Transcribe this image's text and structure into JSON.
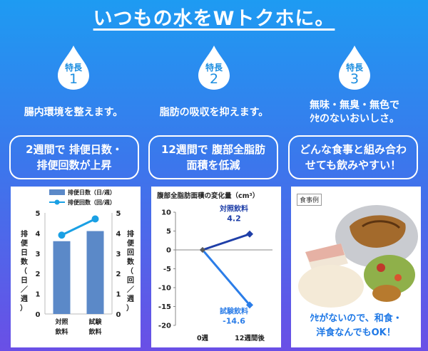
{
  "header": {
    "title": "いつもの水をWトクホに。"
  },
  "features": [
    {
      "tag": "特長",
      "num": "1",
      "text": "腸内環境を整えます。",
      "box": [
        "2週間で 排便日数・",
        "排便回数が上昇"
      ]
    },
    {
      "tag": "特長",
      "num": "2",
      "text": "脂肪の吸収を抑えます。",
      "box": [
        "12週間で 腹部全脂肪",
        "面積を低減"
      ]
    },
    {
      "tag": "特長",
      "num": "3",
      "text": [
        "無味・無臭・無色で",
        "ｸｾのないおいしさ。"
      ],
      "box": [
        "どんな食事と組み合わ",
        "せても飲みやすい！"
      ]
    }
  ],
  "panel3": {
    "tag": "食事例",
    "caption": [
      "ｸｾがないので、和食・",
      "洋食なんでもOK！"
    ]
  },
  "colors": {
    "drop": "#ffffff",
    "accent": "#1c8ee0",
    "bar": "#5b89c8",
    "line": "#1aa0e4",
    "navy": "#1f3fa8"
  },
  "chart_data": [
    {
      "type": "bar",
      "categories": [
        "対照\n飲料",
        "試験\n飲料"
      ],
      "series": [
        {
          "name": "排便日数（日/週）",
          "type": "bar",
          "values": [
            3.6,
            4.1
          ]
        },
        {
          "name": "排便回数（回/週）",
          "type": "line",
          "values": [
            3.9,
            4.7
          ]
        }
      ],
      "ylabel": "排便日数（日／週）",
      "y2label": "排便回数（回／週）",
      "ylim": [
        0,
        5
      ],
      "yticks": [
        "0",
        "1",
        "2",
        "3",
        "4",
        "5"
      ],
      "grid": false,
      "legend": "top"
    },
    {
      "type": "line",
      "title": "腹部全脂肪面積の変化量（cm³）",
      "categories": [
        "0週",
        "12週間後"
      ],
      "series": [
        {
          "name": "対照飲料",
          "values": [
            0,
            4.2
          ],
          "label": "4.2"
        },
        {
          "name": "試験飲料",
          "values": [
            0,
            -14.6
          ],
          "label": "-14.6"
        }
      ],
      "ylim": [
        -20,
        10
      ],
      "yticks": [
        "10",
        "5",
        "0",
        "-5",
        "-10",
        "-15",
        "-20"
      ],
      "grid": false
    }
  ]
}
